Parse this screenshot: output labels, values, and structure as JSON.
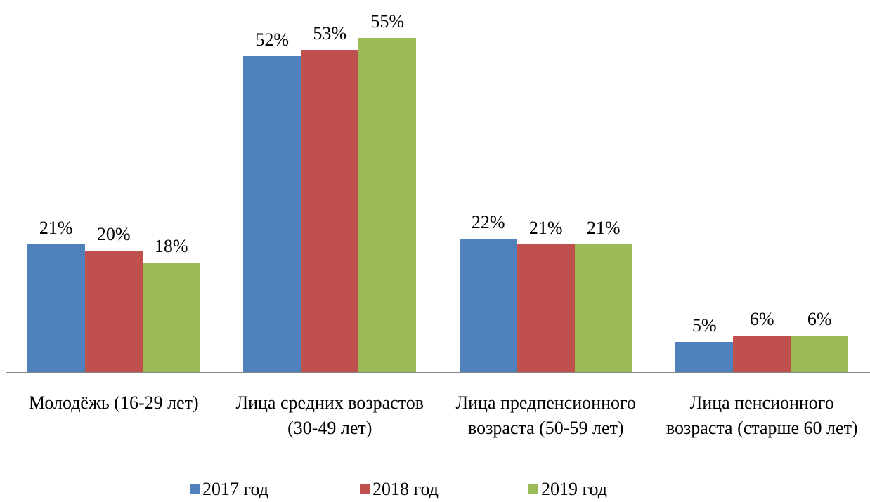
{
  "chart_data": {
    "type": "bar",
    "categories": [
      "Молодёжь (16-29 лет)",
      "Лица средних возрастов (30-49 лет)",
      "Лица предпенсионного возраста (50-59 лет)",
      "Лица пенсионного возраста (старше 60 лет)"
    ],
    "series": [
      {
        "name": "2017 год",
        "color": "#4f81bd",
        "values": [
          21,
          52,
          22,
          5
        ],
        "value_labels": [
          "21%",
          "52%",
          "22%",
          "5%"
        ]
      },
      {
        "name": "2018 год",
        "color": "#c0504d",
        "values": [
          20,
          53,
          21,
          6
        ],
        "value_labels": [
          "20%",
          "53%",
          "21%",
          "6%"
        ]
      },
      {
        "name": "2019 год",
        "color": "#9bbb59",
        "values": [
          18,
          55,
          21,
          6
        ],
        "value_labels": [
          "18%",
          "55%",
          "21%",
          "6%"
        ]
      }
    ],
    "legend": "bottom"
  }
}
